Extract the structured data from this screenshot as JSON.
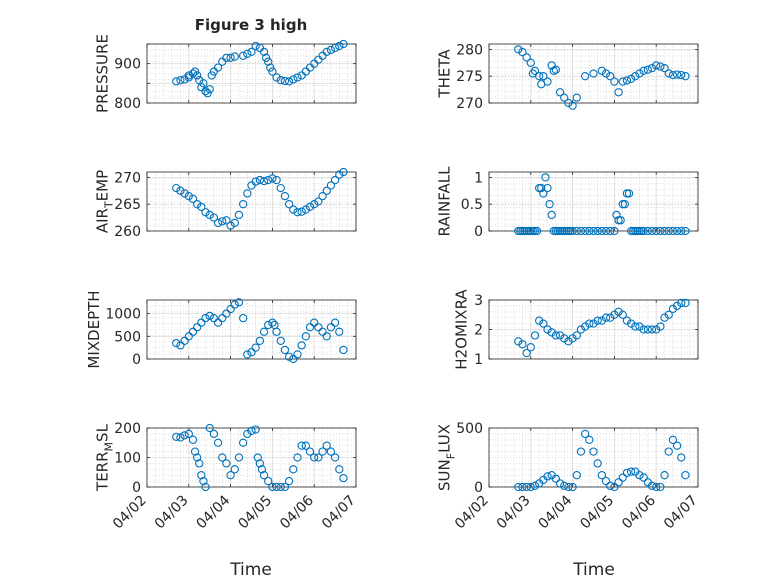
{
  "figure": {
    "title": "Figure 3 high",
    "xlabel": "Time",
    "x_tick_labels": [
      "04/02",
      "04/03",
      "04/04",
      "04/05",
      "04/06",
      "04/07"
    ]
  },
  "colors": {
    "marker": "#0072BD",
    "axis": "#262626",
    "grid": "#dcdcdc",
    "minor_grid": "#c8c8c8"
  },
  "chart_data": [
    {
      "type": "scatter",
      "ylabel": "PRESSURE",
      "ylim": [
        800,
        950
      ],
      "yticks": [
        800,
        850,
        900,
        950
      ],
      "yticklabels": [
        "800",
        "",
        "900",
        ""
      ],
      "xlim": [
        0,
        5
      ],
      "grid": true,
      "minor_grid": true,
      "x": [
        0.7,
        0.8,
        0.9,
        1.0,
        1.0,
        1.1,
        1.15,
        1.2,
        1.25,
        1.3,
        1.35,
        1.4,
        1.45,
        1.5,
        1.55,
        1.6,
        1.7,
        1.8,
        1.9,
        2.0,
        2.1,
        2.3,
        2.4,
        2.5,
        2.6,
        2.7,
        2.8,
        2.85,
        2.9,
        2.95,
        3.0,
        3.1,
        3.2,
        3.3,
        3.4,
        3.5,
        3.6,
        3.7,
        3.8,
        3.9,
        4.0,
        4.1,
        4.2,
        4.3,
        4.4,
        4.5,
        4.6,
        4.7
      ],
      "y": [
        855,
        858,
        860,
        865,
        870,
        875,
        880,
        870,
        858,
        840,
        850,
        830,
        825,
        835,
        870,
        880,
        890,
        905,
        915,
        915,
        918,
        920,
        925,
        930,
        945,
        940,
        930,
        915,
        905,
        890,
        880,
        865,
        858,
        856,
        855,
        860,
        865,
        870,
        880,
        890,
        900,
        910,
        920,
        930,
        935,
        940,
        945,
        950
      ]
    },
    {
      "type": "scatter",
      "ylabel": "THETA",
      "ylim": [
        270,
        281
      ],
      "yticks": [
        270,
        275,
        280
      ],
      "yticklabels": [
        "270",
        "275",
        "280"
      ],
      "xlim": [
        0,
        5
      ],
      "grid": true,
      "minor_grid": true,
      "x": [
        0.7,
        0.8,
        0.9,
        1.0,
        1.05,
        1.1,
        1.2,
        1.25,
        1.3,
        1.4,
        1.5,
        1.55,
        1.6,
        1.7,
        1.8,
        1.9,
        2.0,
        2.1,
        2.3,
        2.5,
        2.7,
        2.8,
        2.9,
        3.0,
        3.1,
        3.2,
        3.3,
        3.4,
        3.5,
        3.6,
        3.7,
        3.8,
        3.9,
        4.0,
        4.1,
        4.2,
        4.3,
        4.4,
        4.5,
        4.6,
        4.7
      ],
      "y": [
        280,
        279.5,
        278.5,
        277.5,
        275.5,
        276,
        275,
        273.5,
        275,
        274,
        277,
        276,
        276.2,
        272,
        271,
        270,
        269.5,
        271,
        275,
        275.5,
        276,
        275.5,
        275,
        274,
        272,
        274,
        274.2,
        274.5,
        275,
        275.5,
        276,
        276.2,
        276.5,
        277,
        276.8,
        276.5,
        275.5,
        275.2,
        275.3,
        275.2,
        275
      ]
    },
    {
      "type": "scatter",
      "ylabel": "AIR_TEMP",
      "ylim": [
        260,
        271
      ],
      "yticks": [
        260,
        265,
        270
      ],
      "yticklabels": [
        "260",
        "265",
        "270"
      ],
      "xlim": [
        0,
        5
      ],
      "grid": true,
      "minor_grid": true,
      "x": [
        0.7,
        0.8,
        0.9,
        1.0,
        1.1,
        1.2,
        1.3,
        1.4,
        1.5,
        1.6,
        1.7,
        1.8,
        1.9,
        2.0,
        2.1,
        2.2,
        2.3,
        2.4,
        2.5,
        2.6,
        2.7,
        2.8,
        2.9,
        3.0,
        3.1,
        3.2,
        3.3,
        3.4,
        3.5,
        3.6,
        3.7,
        3.8,
        3.9,
        4.0,
        4.1,
        4.2,
        4.3,
        4.4,
        4.5,
        4.6,
        4.7
      ],
      "y": [
        268,
        267.5,
        267,
        266.5,
        266,
        265,
        264.5,
        263.5,
        263,
        262.5,
        261.5,
        261.8,
        262,
        261,
        261.5,
        263,
        265,
        267,
        268.5,
        269.2,
        269.5,
        269.3,
        269.5,
        269.8,
        269.5,
        268,
        266.5,
        265,
        264,
        263.5,
        263.6,
        264,
        264.5,
        265,
        265.5,
        266.5,
        267.5,
        268.5,
        269.5,
        270.5,
        271
      ]
    },
    {
      "type": "scatter",
      "ylabel": "RAINFALL",
      "ylim": [
        0,
        1.1
      ],
      "yticks": [
        0,
        0.5,
        1
      ],
      "yticklabels": [
        "0",
        "0.5",
        "1"
      ],
      "xlim": [
        0,
        5
      ],
      "grid": true,
      "minor_grid": true,
      "x": [
        0.7,
        0.75,
        0.8,
        0.85,
        0.9,
        0.95,
        1.0,
        1.05,
        1.1,
        1.15,
        1.2,
        1.25,
        1.3,
        1.35,
        1.4,
        1.45,
        1.5,
        1.55,
        1.6,
        1.65,
        1.7,
        1.75,
        1.8,
        1.85,
        1.9,
        1.95,
        2.0,
        2.1,
        2.2,
        2.3,
        2.4,
        2.5,
        2.6,
        2.7,
        2.8,
        2.9,
        3.0,
        3.05,
        3.1,
        3.15,
        3.2,
        3.25,
        3.3,
        3.35,
        3.4,
        3.45,
        3.5,
        3.55,
        3.6,
        3.65,
        3.7,
        3.8,
        3.9,
        4.0,
        4.1,
        4.2,
        4.3,
        4.4,
        4.5,
        4.6,
        4.7
      ],
      "y": [
        0,
        0,
        0,
        0,
        0,
        0,
        0,
        0,
        0,
        0,
        0.8,
        0.8,
        0.7,
        1.0,
        0.8,
        0.5,
        0.3,
        0,
        0,
        0,
        0,
        0,
        0,
        0,
        0,
        0,
        0,
        0,
        0,
        0,
        0,
        0,
        0,
        0,
        0,
        0,
        0,
        0.3,
        0.2,
        0.2,
        0.5,
        0.5,
        0.7,
        0.7,
        0,
        0,
        0,
        0,
        0,
        0,
        0,
        0,
        0,
        0,
        0,
        0,
        0,
        0,
        0,
        0,
        0
      ]
    },
    {
      "type": "scatter",
      "ylabel": "MIXDEPTH",
      "ylim": [
        0,
        1300
      ],
      "yticks": [
        0,
        500,
        1000
      ],
      "yticklabels": [
        "0",
        "500",
        "1000"
      ],
      "xlim": [
        0,
        5
      ],
      "grid": true,
      "minor_grid": true,
      "x": [
        0.7,
        0.8,
        0.9,
        1.0,
        1.1,
        1.2,
        1.3,
        1.4,
        1.5,
        1.6,
        1.7,
        1.8,
        1.9,
        2.0,
        2.1,
        2.2,
        2.3,
        2.4,
        2.5,
        2.6,
        2.7,
        2.8,
        2.9,
        3.0,
        3.05,
        3.1,
        3.2,
        3.3,
        3.4,
        3.5,
        3.6,
        3.7,
        3.8,
        3.9,
        4.0,
        4.1,
        4.2,
        4.3,
        4.4,
        4.5,
        4.6,
        4.7
      ],
      "y": [
        350,
        300,
        400,
        500,
        600,
        700,
        800,
        900,
        950,
        900,
        800,
        900,
        1000,
        1100,
        1200,
        1250,
        900,
        100,
        150,
        250,
        400,
        600,
        750,
        800,
        750,
        600,
        400,
        200,
        50,
        0,
        100,
        300,
        500,
        700,
        800,
        700,
        600,
        500,
        700,
        800,
        600,
        200
      ]
    },
    {
      "type": "scatter",
      "ylabel": "H2OMIXRA",
      "ylim": [
        1,
        3
      ],
      "yticks": [
        1,
        2,
        3
      ],
      "yticklabels": [
        "1",
        "2",
        "3"
      ],
      "xlim": [
        0,
        5
      ],
      "grid": true,
      "minor_grid": true,
      "x": [
        0.7,
        0.8,
        0.9,
        1.0,
        1.1,
        1.2,
        1.3,
        1.4,
        1.5,
        1.6,
        1.7,
        1.8,
        1.9,
        2.0,
        2.1,
        2.2,
        2.3,
        2.4,
        2.5,
        2.6,
        2.7,
        2.8,
        2.9,
        3.0,
        3.1,
        3.2,
        3.3,
        3.4,
        3.5,
        3.6,
        3.7,
        3.8,
        3.9,
        4.0,
        4.1,
        4.2,
        4.3,
        4.4,
        4.5,
        4.6,
        4.7
      ],
      "y": [
        1.6,
        1.5,
        1.2,
        1.4,
        1.8,
        2.3,
        2.2,
        2.0,
        1.9,
        1.8,
        1.8,
        1.7,
        1.6,
        1.7,
        1.8,
        2.0,
        2.1,
        2.2,
        2.2,
        2.3,
        2.3,
        2.4,
        2.4,
        2.5,
        2.6,
        2.5,
        2.3,
        2.2,
        2.1,
        2.1,
        2.0,
        2.0,
        2.0,
        2.0,
        2.1,
        2.4,
        2.5,
        2.7,
        2.8,
        2.9,
        2.9
      ]
    },
    {
      "type": "scatter",
      "ylabel": "TERR_MSL",
      "ylim": [
        0,
        200
      ],
      "yticks": [
        0,
        100,
        200
      ],
      "yticklabels": [
        "0",
        "100",
        "200"
      ],
      "xlim": [
        0,
        5
      ],
      "grid": true,
      "minor_grid": true,
      "x": [
        0.7,
        0.8,
        0.9,
        1.0,
        1.1,
        1.15,
        1.2,
        1.25,
        1.3,
        1.35,
        1.4,
        1.5,
        1.6,
        1.7,
        1.8,
        1.9,
        2.0,
        2.1,
        2.2,
        2.3,
        2.4,
        2.5,
        2.6,
        2.65,
        2.7,
        2.75,
        2.8,
        2.9,
        3.0,
        3.1,
        3.2,
        3.3,
        3.4,
        3.5,
        3.6,
        3.7,
        3.8,
        3.9,
        4.0,
        4.1,
        4.2,
        4.3,
        4.4,
        4.5,
        4.6,
        4.7
      ],
      "y": [
        170,
        168,
        175,
        180,
        160,
        120,
        100,
        80,
        40,
        20,
        0,
        200,
        180,
        150,
        100,
        80,
        40,
        60,
        100,
        150,
        180,
        190,
        195,
        100,
        80,
        60,
        40,
        20,
        0,
        0,
        0,
        0,
        20,
        60,
        100,
        140,
        140,
        120,
        100,
        100,
        120,
        140,
        120,
        100,
        60,
        30
      ]
    },
    {
      "type": "scatter",
      "ylabel": "SUN_FLUX",
      "ylim": [
        0,
        500
      ],
      "yticks": [
        0,
        500
      ],
      "yticklabels": [
        "0",
        "500"
      ],
      "xlim": [
        0,
        5
      ],
      "grid": true,
      "minor_grid": true,
      "x": [
        0.7,
        0.8,
        0.9,
        1.0,
        1.1,
        1.2,
        1.3,
        1.4,
        1.5,
        1.6,
        1.7,
        1.8,
        1.9,
        2.0,
        2.1,
        2.2,
        2.3,
        2.4,
        2.5,
        2.6,
        2.7,
        2.8,
        2.9,
        3.0,
        3.1,
        3.2,
        3.3,
        3.4,
        3.5,
        3.6,
        3.7,
        3.8,
        3.9,
        4.0,
        4.1,
        4.2,
        4.3,
        4.4,
        4.5,
        4.6,
        4.7
      ],
      "y": [
        0,
        0,
        0,
        0,
        10,
        30,
        60,
        90,
        100,
        70,
        30,
        10,
        0,
        0,
        100,
        300,
        450,
        400,
        300,
        200,
        100,
        50,
        10,
        0,
        40,
        80,
        120,
        130,
        130,
        100,
        80,
        40,
        10,
        0,
        0,
        100,
        300,
        400,
        350,
        250,
        100
      ]
    }
  ]
}
